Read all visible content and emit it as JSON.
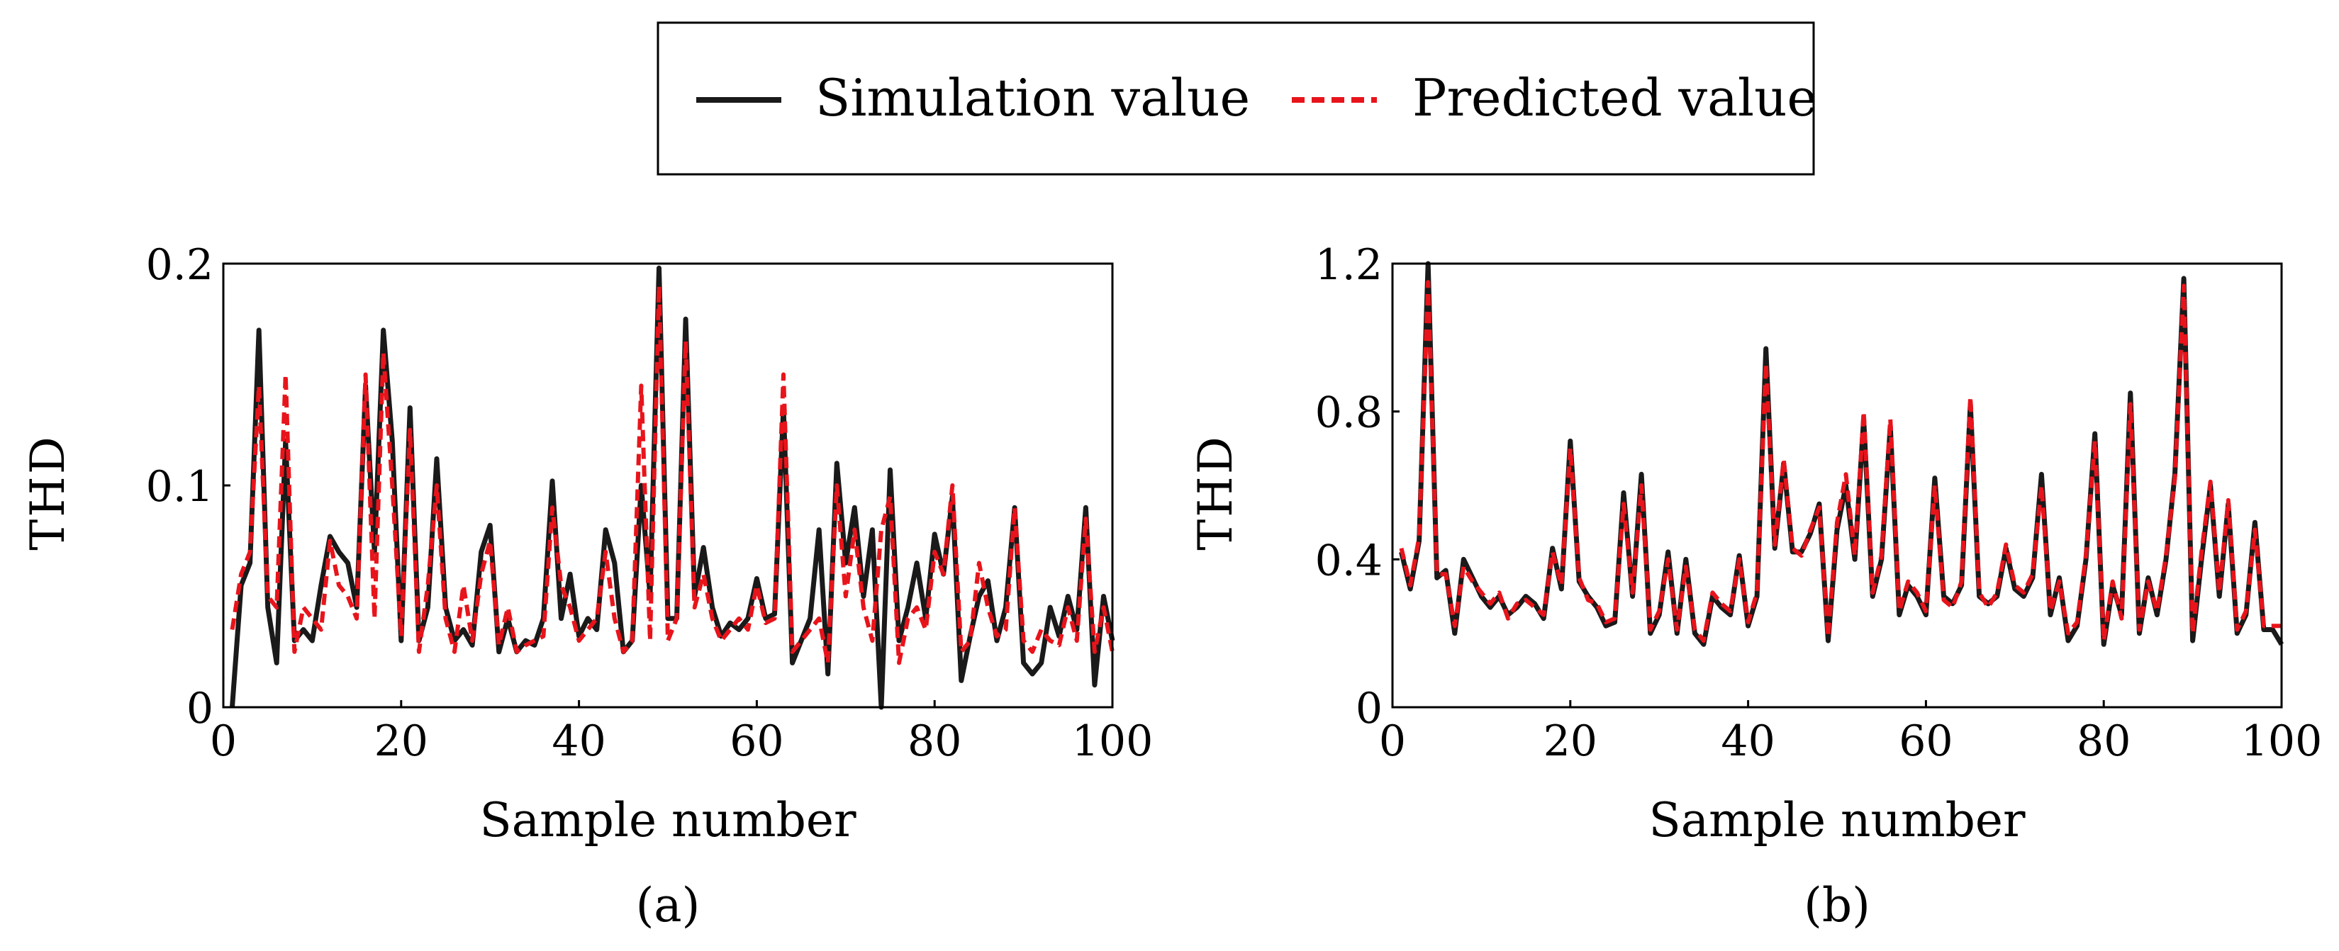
{
  "legend": {
    "placement": "top-center",
    "entries": [
      {
        "label": "Simulation value",
        "color": "#1a1a1a",
        "style": "solid"
      },
      {
        "label": "Predicted value",
        "color": "#e8141b",
        "style": "dashed"
      }
    ]
  },
  "chart_data": [
    {
      "type": "line",
      "caption": "(a)",
      "xlabel": "Sample number",
      "ylabel": "THD",
      "xlim": [
        0,
        100
      ],
      "ylim": [
        0,
        0.2
      ],
      "xticks": [
        0,
        20,
        40,
        60,
        80,
        100
      ],
      "xtick_labels": [
        "0",
        "20",
        "40",
        "60",
        "80",
        "100"
      ],
      "yticks": [
        0,
        0.1,
        0.2
      ],
      "ytick_labels": [
        "0",
        "0.1",
        "0.2"
      ],
      "grid": false,
      "series": [
        {
          "name": "Simulation value",
          "color": "#1a1a1a",
          "style": "solid",
          "values": [
            0.0,
            0.055,
            0.065,
            0.17,
            0.045,
            0.02,
            0.12,
            0.03,
            0.035,
            0.03,
            0.055,
            0.077,
            0.07,
            0.065,
            0.045,
            0.145,
            0.07,
            0.17,
            0.12,
            0.03,
            0.135,
            0.03,
            0.045,
            0.112,
            0.045,
            0.03,
            0.035,
            0.028,
            0.07,
            0.082,
            0.025,
            0.04,
            0.025,
            0.03,
            0.028,
            0.04,
            0.102,
            0.04,
            0.06,
            0.032,
            0.04,
            0.035,
            0.08,
            0.065,
            0.025,
            0.03,
            0.1,
            0.05,
            0.198,
            0.04,
            0.04,
            0.175,
            0.05,
            0.072,
            0.045,
            0.032,
            0.038,
            0.035,
            0.04,
            0.058,
            0.04,
            0.042,
            0.135,
            0.02,
            0.03,
            0.04,
            0.08,
            0.015,
            0.11,
            0.065,
            0.09,
            0.05,
            0.08,
            0.0,
            0.107,
            0.03,
            0.045,
            0.065,
            0.04,
            0.078,
            0.06,
            0.095,
            0.012,
            0.032,
            0.05,
            0.057,
            0.03,
            0.045,
            0.09,
            0.02,
            0.015,
            0.02,
            0.045,
            0.032,
            0.05,
            0.035,
            0.09,
            0.01,
            0.05,
            0.03
          ]
        },
        {
          "name": "Predicted value",
          "color": "#e8141b",
          "style": "dashed",
          "values": [
            0.035,
            0.06,
            0.07,
            0.145,
            0.05,
            0.045,
            0.15,
            0.025,
            0.045,
            0.04,
            0.035,
            0.075,
            0.055,
            0.05,
            0.04,
            0.15,
            0.04,
            0.16,
            0.1,
            0.032,
            0.125,
            0.025,
            0.055,
            0.1,
            0.04,
            0.025,
            0.055,
            0.03,
            0.06,
            0.075,
            0.028,
            0.045,
            0.025,
            0.028,
            0.03,
            0.032,
            0.09,
            0.055,
            0.045,
            0.03,
            0.035,
            0.04,
            0.07,
            0.04,
            0.025,
            0.03,
            0.145,
            0.03,
            0.19,
            0.03,
            0.04,
            0.165,
            0.045,
            0.06,
            0.04,
            0.03,
            0.035,
            0.04,
            0.035,
            0.055,
            0.038,
            0.04,
            0.15,
            0.025,
            0.03,
            0.035,
            0.04,
            0.02,
            0.1,
            0.05,
            0.08,
            0.045,
            0.03,
            0.08,
            0.095,
            0.02,
            0.04,
            0.045,
            0.035,
            0.07,
            0.06,
            0.1,
            0.025,
            0.03,
            0.065,
            0.045,
            0.032,
            0.035,
            0.09,
            0.03,
            0.025,
            0.035,
            0.03,
            0.028,
            0.045,
            0.03,
            0.085,
            0.025,
            0.045,
            0.025
          ]
        }
      ]
    },
    {
      "type": "line",
      "caption": "(b)",
      "xlabel": "Sample number",
      "ylabel": "THD",
      "xlim": [
        0,
        100
      ],
      "ylim": [
        0,
        1.2
      ],
      "xticks": [
        0,
        20,
        40,
        60,
        80,
        100
      ],
      "xtick_labels": [
        "0",
        "20",
        "40",
        "60",
        "80",
        "100"
      ],
      "yticks": [
        0,
        0.4,
        0.8,
        1.2
      ],
      "ytick_labels": [
        "0",
        "0.4",
        "0.8",
        "1.2"
      ],
      "grid": false,
      "series": [
        {
          "name": "Simulation value",
          "color": "#1a1a1a",
          "style": "solid",
          "values": [
            0.42,
            0.32,
            0.45,
            1.2,
            0.35,
            0.37,
            0.2,
            0.4,
            0.35,
            0.3,
            0.27,
            0.3,
            0.25,
            0.27,
            0.3,
            0.28,
            0.24,
            0.43,
            0.32,
            0.72,
            0.34,
            0.3,
            0.27,
            0.22,
            0.23,
            0.58,
            0.3,
            0.63,
            0.2,
            0.25,
            0.42,
            0.2,
            0.4,
            0.2,
            0.17,
            0.3,
            0.27,
            0.25,
            0.41,
            0.22,
            0.3,
            0.97,
            0.43,
            0.66,
            0.42,
            0.42,
            0.47,
            0.55,
            0.18,
            0.48,
            0.6,
            0.4,
            0.78,
            0.3,
            0.4,
            0.76,
            0.25,
            0.33,
            0.3,
            0.25,
            0.62,
            0.3,
            0.28,
            0.33,
            0.82,
            0.3,
            0.28,
            0.3,
            0.43,
            0.32,
            0.3,
            0.35,
            0.63,
            0.25,
            0.35,
            0.18,
            0.22,
            0.4,
            0.74,
            0.17,
            0.33,
            0.25,
            0.85,
            0.2,
            0.35,
            0.25,
            0.4,
            0.63,
            1.16,
            0.18,
            0.4,
            0.6,
            0.3,
            0.55,
            0.2,
            0.25,
            0.5,
            0.21,
            0.21,
            0.17
          ]
        },
        {
          "name": "Predicted value",
          "color": "#e8141b",
          "style": "dashed",
          "values": [
            0.43,
            0.33,
            0.46,
            1.15,
            0.36,
            0.36,
            0.22,
            0.38,
            0.34,
            0.31,
            0.28,
            0.31,
            0.24,
            0.28,
            0.29,
            0.27,
            0.25,
            0.42,
            0.33,
            0.7,
            0.35,
            0.29,
            0.28,
            0.23,
            0.24,
            0.55,
            0.31,
            0.6,
            0.21,
            0.26,
            0.4,
            0.21,
            0.38,
            0.21,
            0.18,
            0.31,
            0.28,
            0.26,
            0.4,
            0.23,
            0.31,
            0.93,
            0.44,
            0.67,
            0.43,
            0.41,
            0.48,
            0.54,
            0.19,
            0.5,
            0.63,
            0.41,
            0.8,
            0.31,
            0.41,
            0.78,
            0.26,
            0.34,
            0.31,
            0.26,
            0.6,
            0.29,
            0.27,
            0.34,
            0.84,
            0.31,
            0.27,
            0.31,
            0.44,
            0.33,
            0.31,
            0.36,
            0.6,
            0.26,
            0.34,
            0.2,
            0.23,
            0.41,
            0.72,
            0.18,
            0.34,
            0.24,
            0.82,
            0.21,
            0.34,
            0.26,
            0.41,
            0.62,
            1.14,
            0.2,
            0.42,
            0.61,
            0.31,
            0.56,
            0.21,
            0.26,
            0.48,
            0.22,
            0.22,
            0.22
          ]
        }
      ]
    }
  ]
}
